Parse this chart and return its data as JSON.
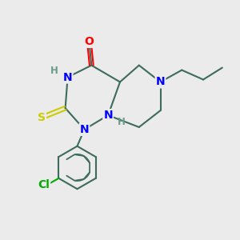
{
  "background_color": "#ebebeb",
  "bond_color": "#3d6b5c",
  "bond_width": 1.5,
  "atom_colors": {
    "N": "#0000ff",
    "O": "#ff0000",
    "S": "#cccc00",
    "Cl": "#00aa00",
    "C": "#3d6b5c",
    "H_label": "#6a9a8a"
  },
  "font_size_atoms": 10,
  "font_size_small": 8.5
}
